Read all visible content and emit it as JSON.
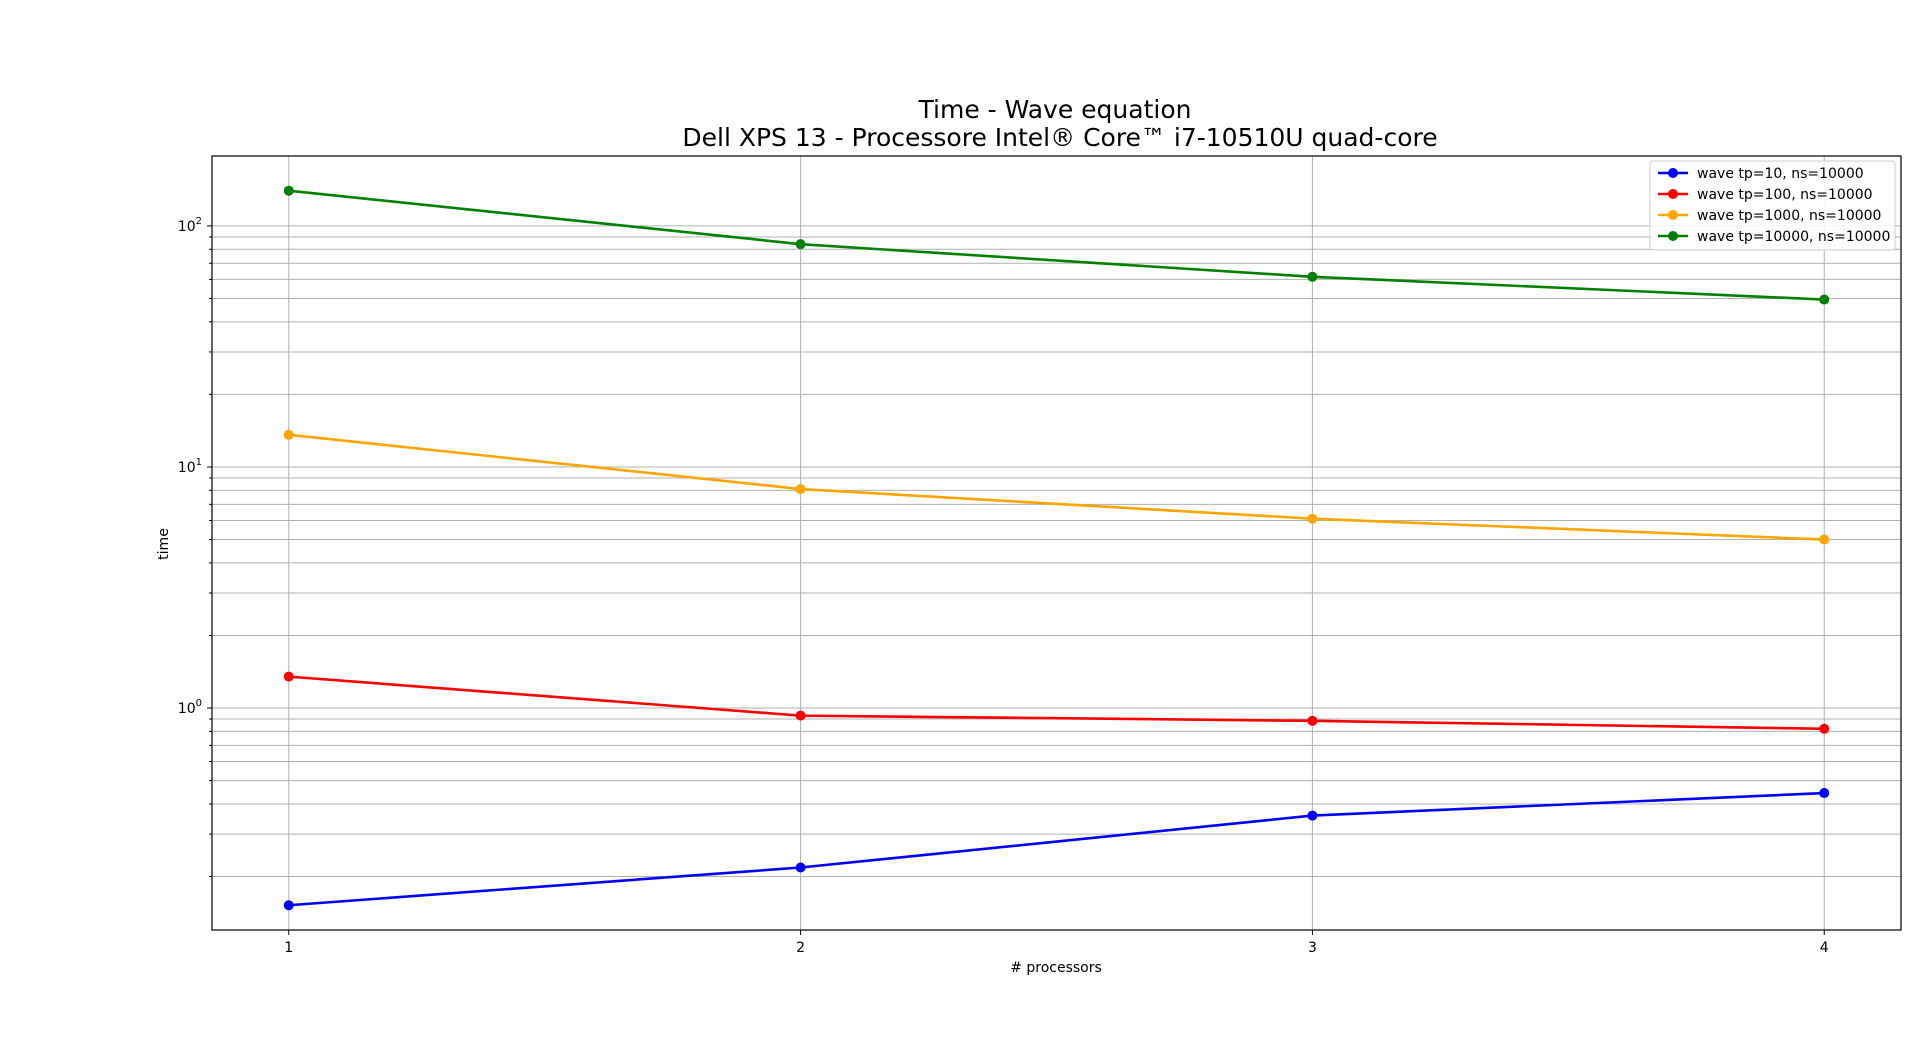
{
  "chart_data": {
    "type": "line",
    "title": "Time -  Wave equation",
    "subtitle": "Dell XPS 13 - Processore Intel® Core™ i7-10510U quad-core",
    "xlabel": "# processors",
    "ylabel": "time",
    "x": [
      1,
      2,
      3,
      4
    ],
    "x_ticks": [
      "1",
      "2",
      "3",
      "4"
    ],
    "y_scale": "log",
    "ylim": [
      0.12,
      195
    ],
    "y_ticks": [
      {
        "value": 1,
        "base": "10",
        "exp": "0"
      },
      {
        "value": 10,
        "base": "10",
        "exp": "1"
      },
      {
        "value": 100,
        "base": "10",
        "exp": "2"
      }
    ],
    "grid": "both, major and minor on y",
    "legend_position": "top-right",
    "series": [
      {
        "name": "wave tp=10, ns=10000",
        "color": "#0000ff",
        "values": [
          0.152,
          0.218,
          0.358,
          0.444
        ]
      },
      {
        "name": "wave tp=100, ns=10000",
        "color": "#ff0000",
        "values": [
          1.35,
          0.93,
          0.885,
          0.82
        ]
      },
      {
        "name": "wave tp=1000, ns=10000",
        "color": "#ffa500",
        "values": [
          13.6,
          8.1,
          6.1,
          5.0
        ]
      },
      {
        "name": "wave tp=10000, ns=10000",
        "color": "#008000",
        "values": [
          140,
          84,
          61.5,
          49.5
        ]
      }
    ]
  }
}
